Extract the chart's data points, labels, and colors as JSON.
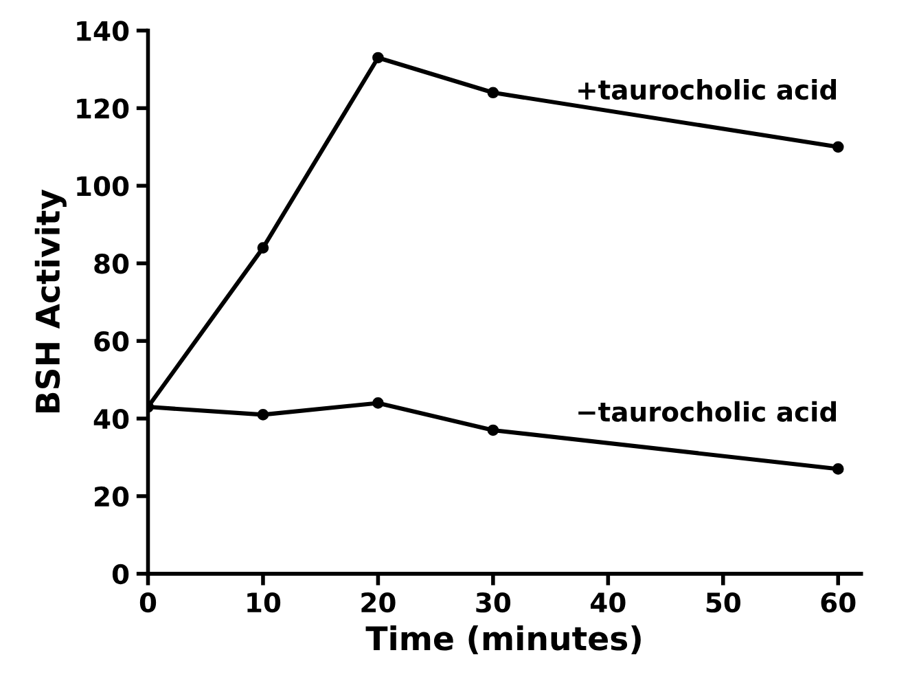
{
  "chart_data": {
    "type": "line",
    "xlabel": "Time (minutes)",
    "ylabel": "BSH Activity",
    "x": [
      0,
      10,
      20,
      30,
      60
    ],
    "series": [
      {
        "name": "+taurocholic acid",
        "color": "#000000",
        "values": [
          43,
          84,
          133,
          124,
          110
        ]
      },
      {
        "name": "−taurocholic acid",
        "color": "#000000",
        "values": [
          43,
          41,
          44,
          37,
          27
        ]
      }
    ],
    "xlim": [
      0,
      62
    ],
    "xticks": [
      0,
      10,
      20,
      30,
      40,
      50,
      60
    ],
    "ylim": [
      0,
      140
    ],
    "yticks": [
      0,
      20,
      40,
      60,
      80,
      100,
      120,
      140
    ],
    "grid": false,
    "legend": false,
    "marker": "circle",
    "line_style": "solid"
  }
}
